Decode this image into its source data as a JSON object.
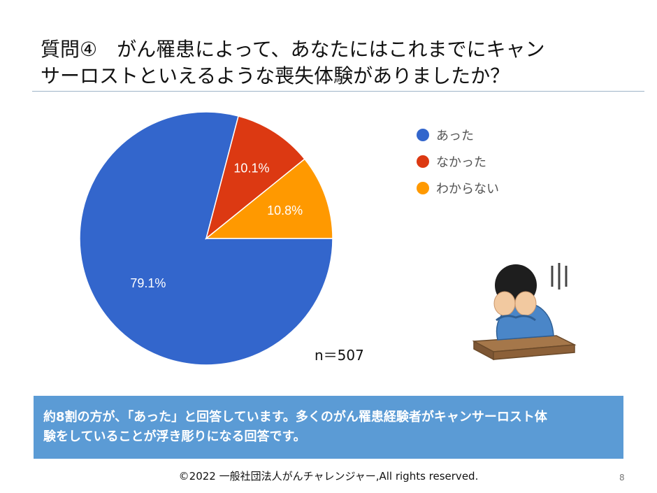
{
  "slide": {
    "title_line1": "質問④　がん罹患によって、あなたにはこれまでにキャン",
    "title_line2": "サーロストといえるような喪失体験がありましたか？",
    "sample_size": "n＝507",
    "summary_line1": "約8割の方が、「あった」と回答しています。多くのがん罹患経験者がキャンサーロスト体",
    "summary_line2": "験をしていることが浮き彫りになる回答です。",
    "footer": "©2022 一般社団法人がんチャレンジャー,All rights reserved.",
    "page_number": "8",
    "illustration_icon": "worried-person-icon"
  },
  "chart_data": {
    "type": "pie",
    "title": "",
    "slices": [
      {
        "label": "あった",
        "value": 79.1,
        "display": "79.1%",
        "color": "#3366cc"
      },
      {
        "label": "なかった",
        "value": 10.1,
        "display": "10.1%",
        "color": "#dc3912"
      },
      {
        "label": "わからない",
        "value": 10.8,
        "display": "10.8%",
        "color": "#ff9900"
      }
    ],
    "legend_position": "right"
  }
}
